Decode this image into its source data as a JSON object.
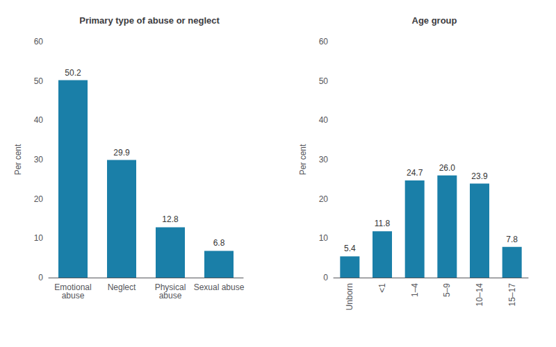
{
  "chart_data": [
    {
      "type": "bar",
      "title": "Primary type of abuse or neglect",
      "categories": [
        "Emotional\nabuse",
        "Neglect",
        "Physical\nabuse",
        "Sexual abuse"
      ],
      "values": [
        50.2,
        29.9,
        12.8,
        6.8
      ],
      "color": "#1a7fa8",
      "ylabel": "Per cent",
      "ylim": [
        0,
        60
      ],
      "yticks": [
        0,
        10,
        20,
        30,
        40,
        50,
        60
      ],
      "grid": false,
      "data_labels": true
    },
    {
      "type": "bar",
      "title": "Age group",
      "categories": [
        "Unborn",
        "<1",
        "1–4",
        "5–9",
        "10–14",
        "15–17"
      ],
      "values": [
        5.4,
        11.8,
        24.7,
        26.0,
        23.9,
        7.8
      ],
      "value_labels": [
        "5.4",
        "11.8",
        "24.7",
        "26.0",
        "23.9",
        "7.8"
      ],
      "color": "#1a7fa8",
      "ylabel": "Per cent",
      "ylim": [
        0,
        60
      ],
      "yticks": [
        0,
        10,
        20,
        30,
        40,
        50,
        60
      ],
      "grid": false,
      "data_labels": true
    }
  ]
}
